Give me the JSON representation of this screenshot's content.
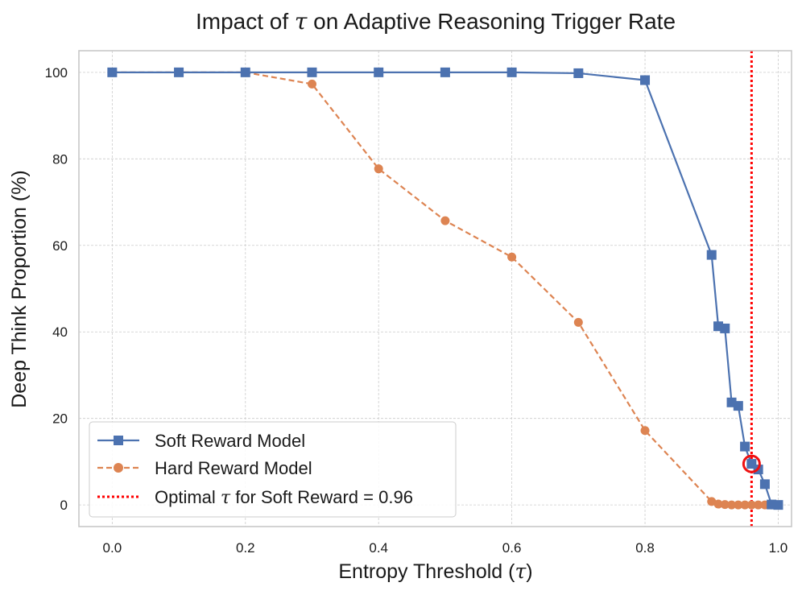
{
  "chart_data": {
    "type": "line",
    "title": {
      "pre": "Impact of ",
      "sym": "τ",
      "post": " on Adaptive Reasoning Trigger Rate"
    },
    "xlabel": {
      "pre": "Entropy Threshold (",
      "sym": "τ",
      "post": ")"
    },
    "ylabel": "Deep Think Proportion (%)",
    "xlim": [
      -0.05,
      1.02
    ],
    "ylim": [
      -5,
      105
    ],
    "xticks": [
      0.0,
      0.2,
      0.4,
      0.6,
      0.8,
      1.0
    ],
    "xtick_labels": [
      "0.0",
      "0.2",
      "0.4",
      "0.6",
      "0.8",
      "1.0"
    ],
    "yticks": [
      0,
      20,
      40,
      60,
      80,
      100
    ],
    "ytick_labels": [
      "0",
      "20",
      "40",
      "60",
      "80",
      "100"
    ],
    "grid": true,
    "legend_position": "lower-left",
    "series": [
      {
        "name": "Soft Reward Model",
        "color": "#4c72b0",
        "marker": "square",
        "linestyle": "solid",
        "x": [
          0.0,
          0.1,
          0.2,
          0.3,
          0.4,
          0.5,
          0.6,
          0.7,
          0.8,
          0.9,
          0.91,
          0.92,
          0.93,
          0.94,
          0.95,
          0.96,
          0.97,
          0.98,
          0.99,
          1.0
        ],
        "y": [
          100,
          100,
          100,
          100,
          100,
          100,
          100,
          99.8,
          98.2,
          57.8,
          41.3,
          40.8,
          23.7,
          22.9,
          13.5,
          9.5,
          8.2,
          4.8,
          0.1,
          0.0
        ]
      },
      {
        "name": "Hard Reward Model",
        "color": "#dd8452",
        "marker": "circle",
        "linestyle": "dashed",
        "x": [
          0.0,
          0.1,
          0.2,
          0.3,
          0.4,
          0.5,
          0.6,
          0.7,
          0.8,
          0.9,
          0.91,
          0.92,
          0.93,
          0.94,
          0.95,
          0.96,
          0.97,
          0.98,
          0.99,
          1.0
        ],
        "y": [
          100,
          100,
          100,
          97.3,
          77.7,
          65.7,
          57.3,
          42.2,
          17.2,
          0.8,
          0.2,
          0.1,
          0.0,
          0.0,
          0.0,
          0.0,
          0.0,
          0.0,
          0.0,
          0.0
        ]
      }
    ],
    "annotations": [
      {
        "type": "vline",
        "x": 0.96,
        "color": "#ff0000",
        "linestyle": "dotted",
        "legend": {
          "pre": "Optimal ",
          "sym": "τ",
          "post": " for Soft Reward = 0.96"
        }
      },
      {
        "type": "highlight-circle",
        "x": 0.96,
        "y": 9.5,
        "color": "#ee1111"
      }
    ]
  }
}
